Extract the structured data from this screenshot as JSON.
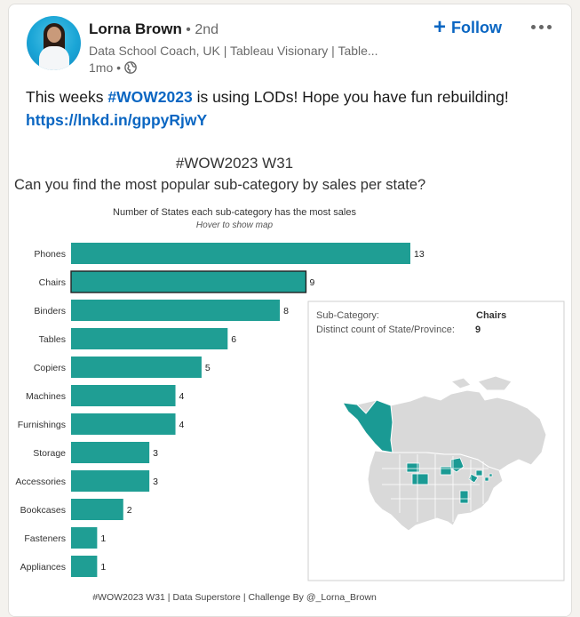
{
  "post": {
    "author_name": "Lorna Brown",
    "degree": " • 2nd",
    "headline": "Data School Coach, UK | Tableau Visionary | Table...",
    "time": "1mo •",
    "follow_label": "Follow",
    "text_before": "This weeks ",
    "hashtag": "#WOW2023",
    "text_after": " is using LODs! Hope you have fun rebuilding!",
    "link": "https://lnkd.in/gppyRjwY"
  },
  "viz": {
    "title": "#WOW2023 W31",
    "question": "Can you find the most popular sub-category by sales per state?",
    "footer": "#WOW2023 W31 | Data Superstore | Challenge By @_Lorna_Brown"
  },
  "tooltip": {
    "label1": "Sub-Category:",
    "value1": "Chairs",
    "label2": "Distinct count of State/Province:",
    "value2": "9"
  },
  "chart_data": {
    "type": "bar",
    "orientation": "horizontal",
    "title": "Number of States each sub-category has the most sales",
    "subtitle": "Hover to show map",
    "categories": [
      "Phones",
      "Chairs",
      "Binders",
      "Tables",
      "Copiers",
      "Machines",
      "Furnishings",
      "Storage",
      "Accessories",
      "Bookcases",
      "Fasteners",
      "Appliances"
    ],
    "values": [
      13,
      9,
      8,
      6,
      5,
      4,
      4,
      3,
      3,
      2,
      1,
      1
    ],
    "highlighted": "Chairs",
    "bar_color": "#1f9e94",
    "xlim": [
      0,
      13
    ]
  },
  "colors": {
    "link": "#0a66c2",
    "map_land": "#d9d9d9",
    "map_highlight": "#1a9a94"
  },
  "icons": {
    "globe": "globe-icon",
    "follow": "plus-icon",
    "more": "more-horizontal-icon"
  }
}
